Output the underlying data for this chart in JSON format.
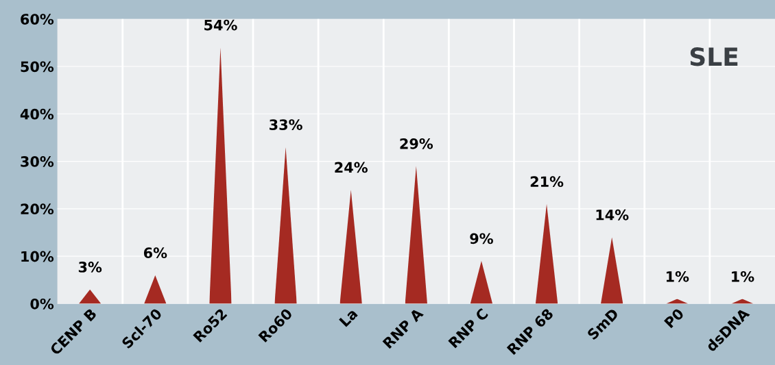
{
  "chart_data": {
    "type": "bar",
    "categories": [
      "CENP B",
      "Scl-70",
      "Ro52",
      "Ro60",
      "La",
      "RNP A",
      "RNP C",
      "RNP 68",
      "SmD",
      "P0",
      "dsDNA"
    ],
    "values": [
      3,
      6,
      54,
      33,
      24,
      29,
      9,
      21,
      14,
      1,
      1
    ],
    "color": "#a52a22",
    "ylim": [
      0,
      60
    ],
    "yticks": [
      {
        "value": 0,
        "label": "0%"
      },
      {
        "value": 10,
        "label": "10%"
      },
      {
        "value": 20,
        "label": "20%"
      },
      {
        "value": 30,
        "label": "30%"
      },
      {
        "value": 40,
        "label": "40%"
      },
      {
        "value": 50,
        "label": "50%"
      },
      {
        "value": 60,
        "label": "60%"
      }
    ],
    "value_labels": [
      "3%",
      "6%",
      "54%",
      "33%",
      "24%",
      "29%",
      "9%",
      "21%",
      "14%",
      "1%",
      "1%"
    ],
    "annotations": [
      "SLE"
    ],
    "grid": "y"
  }
}
